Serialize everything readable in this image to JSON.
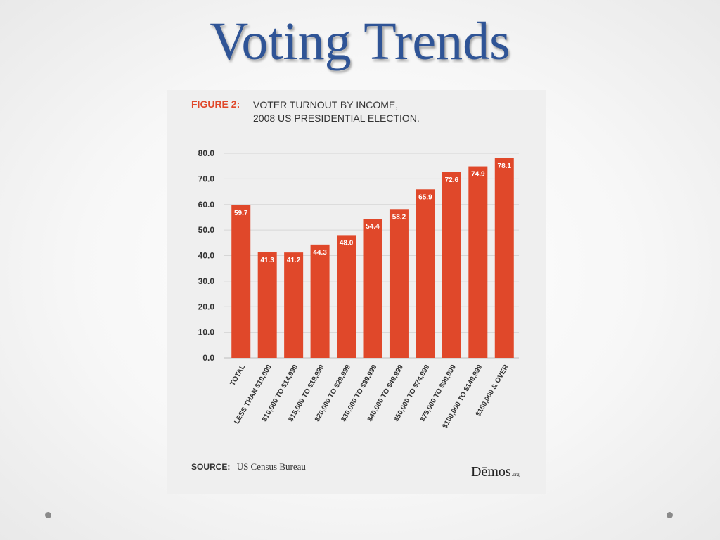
{
  "slide": {
    "title": "Voting Trends"
  },
  "figure": {
    "label": "FIGURE 2:",
    "title_line1": "VOTER TURNOUT BY INCOME,",
    "title_line2": "2008 US PRESIDENTIAL ELECTION.",
    "source_label": "SOURCE:",
    "source_value": "US Census Bureau",
    "logo_text": "Dēmos",
    "logo_suffix": ".org"
  },
  "chart_data": {
    "type": "bar",
    "categories": [
      "TOTAL",
      "LESS THAN $10,000",
      "$10,000 TO $14,999",
      "$15,000 TO $19,999",
      "$20,000 TO $29,999",
      "$30,000 TO $39,999",
      "$40,000 TO $49,999",
      "$50,000 TO $74,999",
      "$75,000 TO $99,999",
      "$100,000 TO $149,999",
      "$150,000 & OVER"
    ],
    "values": [
      59.7,
      41.3,
      41.2,
      44.3,
      48.0,
      54.4,
      58.2,
      65.9,
      72.6,
      74.9,
      78.1
    ],
    "value_labels": [
      "59.7",
      "41.3",
      "41.2",
      "44.3",
      "48.0",
      "54.4",
      "58.2",
      "65.9",
      "72.6",
      "74.9",
      "78.1"
    ],
    "yticks": [
      "0.0",
      "10.0",
      "20.0",
      "30.0",
      "40.0",
      "50.0",
      "60.0",
      "70.0",
      "80.0"
    ],
    "ylim": [
      0,
      80
    ],
    "grid": true,
    "bar_color": "#e0482a",
    "xlabel": "",
    "ylabel": ""
  }
}
